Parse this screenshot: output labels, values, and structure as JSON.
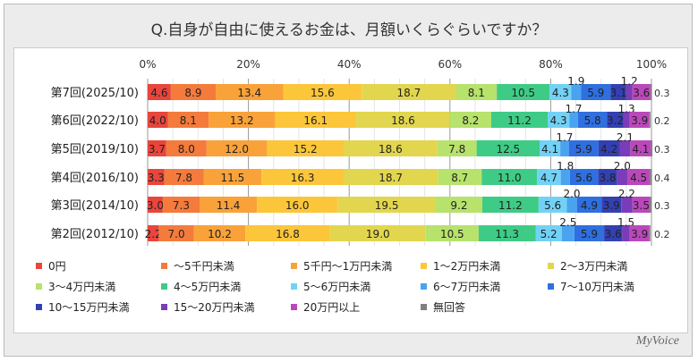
{
  "title": "Q.自身が自由に使えるお金は、月額いくらぐらいですか？",
  "logo": "MyVoice",
  "chart_data": {
    "type": "bar",
    "orientation": "horizontal-stacked-100",
    "title": "Q.自身が自由に使えるお金は、月額いくらぐらいですか？",
    "xlim": [
      0,
      100
    ],
    "xticks": [
      "0%",
      "20%",
      "40%",
      "60%",
      "80%",
      "100%"
    ],
    "grid": true,
    "legend_position": "bottom",
    "categories": [
      "第7回(2025/10)",
      "第6回(2022/10)",
      "第5回(2019/10)",
      "第4回(2016/10)",
      "第3回(2014/10)",
      "第2回(2012/10)"
    ],
    "series": [
      {
        "name": "0円",
        "color": "#e8453c",
        "values": [
          4.6,
          4.0,
          3.7,
          3.3,
          3.0,
          2.2
        ]
      },
      {
        "name": "～5千円未満",
        "color": "#f47b3c",
        "values": [
          8.9,
          8.1,
          8.0,
          7.8,
          7.3,
          7.0
        ]
      },
      {
        "name": "5千円～1万円未満",
        "color": "#f9a23a",
        "values": [
          13.4,
          13.2,
          12.0,
          11.5,
          11.4,
          10.2
        ]
      },
      {
        "name": "1～2万円未満",
        "color": "#fcc63a",
        "values": [
          15.6,
          16.1,
          15.2,
          16.3,
          16.0,
          16.8
        ]
      },
      {
        "name": "2～3万円未満",
        "color": "#e2d64e",
        "values": [
          18.7,
          18.6,
          18.6,
          18.7,
          19.5,
          19.0
        ]
      },
      {
        "name": "3～4万円未満",
        "color": "#b7e26c",
        "values": [
          8.1,
          8.2,
          7.8,
          8.7,
          9.2,
          10.5
        ]
      },
      {
        "name": "4～5万円未満",
        "color": "#3ecb86",
        "values": [
          10.5,
          11.2,
          12.5,
          11.0,
          11.2,
          11.3
        ]
      },
      {
        "name": "5～6万円未満",
        "color": "#72d2f6",
        "values": [
          4.3,
          4.3,
          4.1,
          4.7,
          5.6,
          5.2
        ]
      },
      {
        "name": "6～7万円未満",
        "color": "#4aa3ef",
        "values": [
          1.9,
          1.7,
          1.7,
          1.8,
          2.0,
          2.5
        ]
      },
      {
        "name": "7～10万円未満",
        "color": "#2f6fe0",
        "values": [
          5.9,
          5.8,
          5.9,
          5.6,
          4.9,
          5.9
        ]
      },
      {
        "name": "10～15万円未満",
        "color": "#3340b2",
        "values": [
          3.1,
          3.2,
          4.2,
          3.8,
          3.9,
          3.6
        ]
      },
      {
        "name": "15～20万円未満",
        "color": "#7a3cb8",
        "values": [
          1.2,
          1.3,
          2.1,
          2.0,
          2.2,
          1.5
        ]
      },
      {
        "name": "20万円以上",
        "color": "#bb48bb",
        "values": [
          3.6,
          3.9,
          4.1,
          4.5,
          3.5,
          3.9
        ]
      },
      {
        "name": "無回答",
        "color": "#808080",
        "values": [
          0.3,
          0.2,
          0.3,
          0.4,
          0.3,
          0.2
        ]
      }
    ]
  }
}
